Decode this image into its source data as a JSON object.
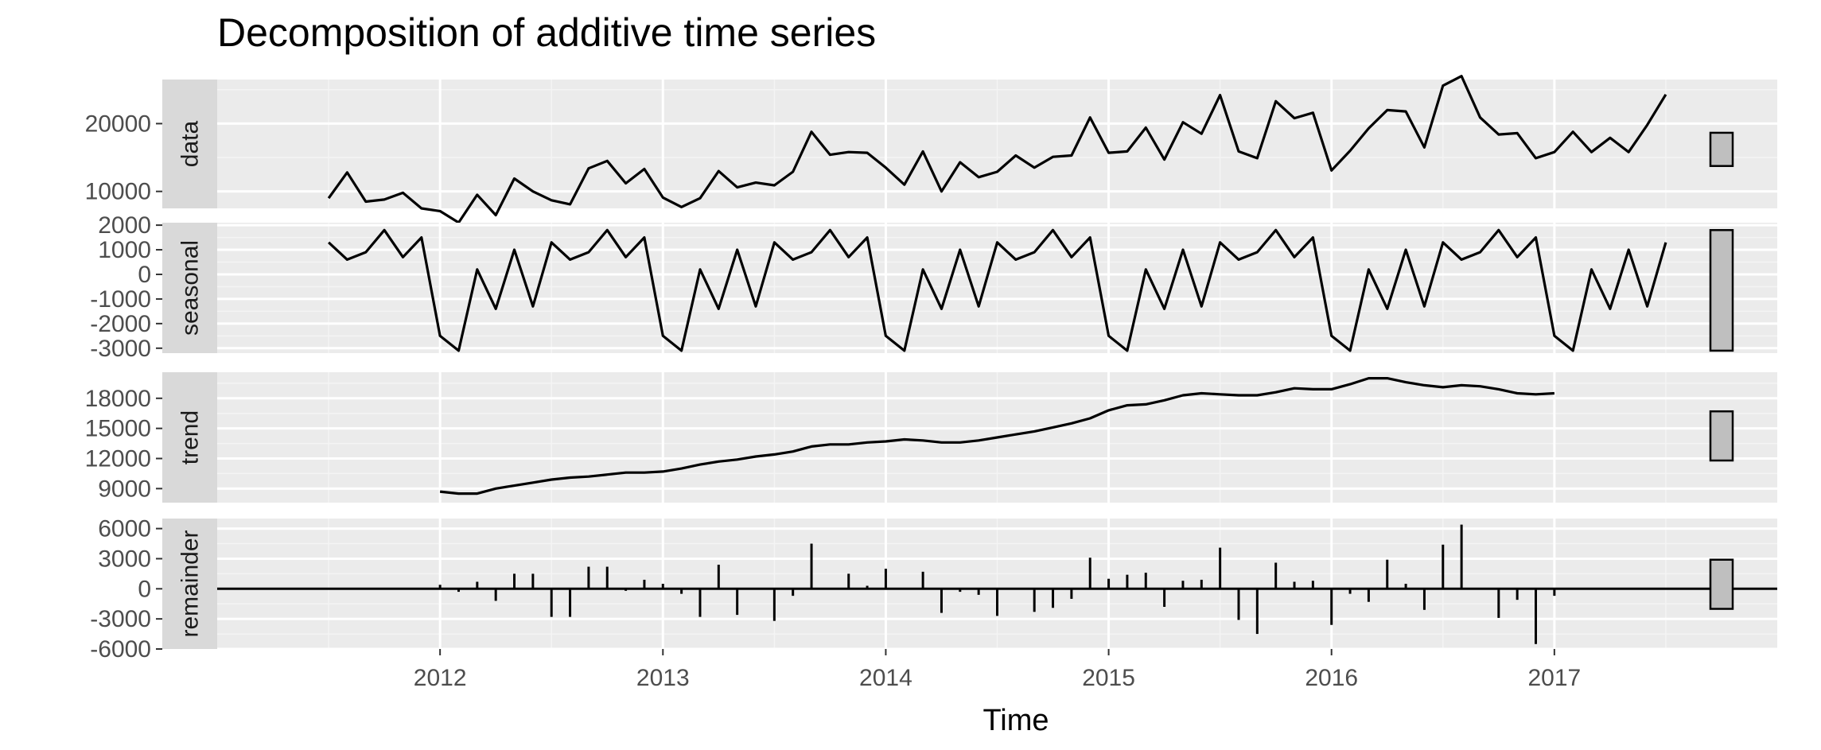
{
  "chart_data": {
    "type": "line",
    "title": "Decomposition of additive time series",
    "xlabel": "Time",
    "x_ticks": [
      "2012",
      "2013",
      "2014",
      "2015",
      "2016",
      "2017"
    ],
    "x_tick_values": [
      2012,
      2013,
      2014,
      2015,
      2016,
      2017
    ],
    "xlim": [
      2011.0,
      2018.0
    ],
    "grid": true,
    "start": 2011.5,
    "frequency": 12,
    "panels": [
      {
        "name": "data",
        "type": "line",
        "ylim": [
          7500,
          26500
        ],
        "yticks": [
          10000,
          20000
        ],
        "ytick_labels": [
          "10000",
          "20000"
        ],
        "values": [
          9000,
          12800,
          8500,
          8800,
          9800,
          7500,
          7100,
          5400,
          9500,
          6500,
          11900,
          10000,
          8700,
          8100,
          13400,
          14500,
          11200,
          13300,
          9100,
          7700,
          9000,
          13000,
          10600,
          11300,
          10900,
          12900,
          18800,
          15400,
          15800,
          15700,
          13500,
          11000,
          15900,
          10000,
          14300,
          12100,
          12900,
          15300,
          13500,
          15100,
          15300,
          20900,
          15700,
          15900,
          19400,
          14700,
          20200,
          18500,
          24200,
          15900,
          14900,
          23300,
          20800,
          21600,
          13100,
          16000,
          19300,
          22000,
          21800,
          16500,
          25600,
          27000,
          20900,
          18400,
          18600,
          14900,
          15800,
          18800,
          15800,
          17900,
          15800,
          19800,
          24300
        ]
      },
      {
        "name": "seasonal",
        "type": "line",
        "ylim": [
          -3200,
          2100
        ],
        "yticks": [
          -3000,
          -2000,
          -1000,
          0,
          1000,
          2000
        ],
        "ytick_labels": [
          "-3000",
          "-2000",
          "-1000",
          "0",
          "1000",
          "2000"
        ],
        "seasonal_pattern": [
          1300,
          600,
          900,
          1800,
          700,
          1500,
          -2500,
          -3100,
          200,
          -1400,
          1000,
          -1300
        ],
        "bar_range": [
          -3100,
          1800
        ]
      },
      {
        "name": "trend",
        "type": "line",
        "ylim": [
          7600,
          20600
        ],
        "yticks": [
          9000,
          12000,
          15000,
          18000
        ],
        "ytick_labels": [
          "9000",
          "12000",
          "15000",
          "18000"
        ],
        "start": 2012.0,
        "values": [
          8700,
          8500,
          8500,
          9000,
          9300,
          9600,
          9900,
          10100,
          10200,
          10400,
          10600,
          10600,
          10700,
          11000,
          11400,
          11700,
          11900,
          12200,
          12400,
          12700,
          13200,
          13400,
          13400,
          13600,
          13700,
          13900,
          13800,
          13600,
          13600,
          13800,
          14100,
          14400,
          14700,
          15100,
          15500,
          16000,
          16800,
          17300,
          17400,
          17800,
          18300,
          18500,
          18400,
          18300,
          18300,
          18600,
          19000,
          18900,
          18900,
          19400,
          20000,
          20000,
          19600,
          19300,
          19100,
          19300,
          19200,
          18900,
          18500,
          18400,
          18500
        ]
      },
      {
        "name": "remainder",
        "type": "bar",
        "ylim": [
          -6000,
          7000
        ],
        "yticks": [
          -6000,
          -3000,
          0,
          3000,
          6000
        ],
        "ytick_labels": [
          "-6000",
          "-3000",
          "0",
          "3000",
          "6000"
        ],
        "start": 2012.0,
        "values": [
          400,
          -300,
          700,
          -1200,
          1500,
          1500,
          -2800,
          -2800,
          2200,
          2200,
          -200,
          900,
          500,
          -500,
          -2800,
          2400,
          -2600,
          0,
          -3200,
          -700,
          4500,
          0,
          1500,
          300,
          2000,
          0,
          1700,
          -2400,
          -300,
          -600,
          -2700,
          100,
          -2300,
          -1900,
          -1000,
          3100,
          1000,
          1400,
          1600,
          -1800,
          800,
          900,
          4100,
          -3100,
          -4500,
          2600,
          700,
          800,
          -3600,
          -500,
          -1300,
          2900,
          500,
          -2100,
          4400,
          6400,
          0,
          -2900,
          -1100,
          -5500,
          -700
        ]
      }
    ]
  }
}
